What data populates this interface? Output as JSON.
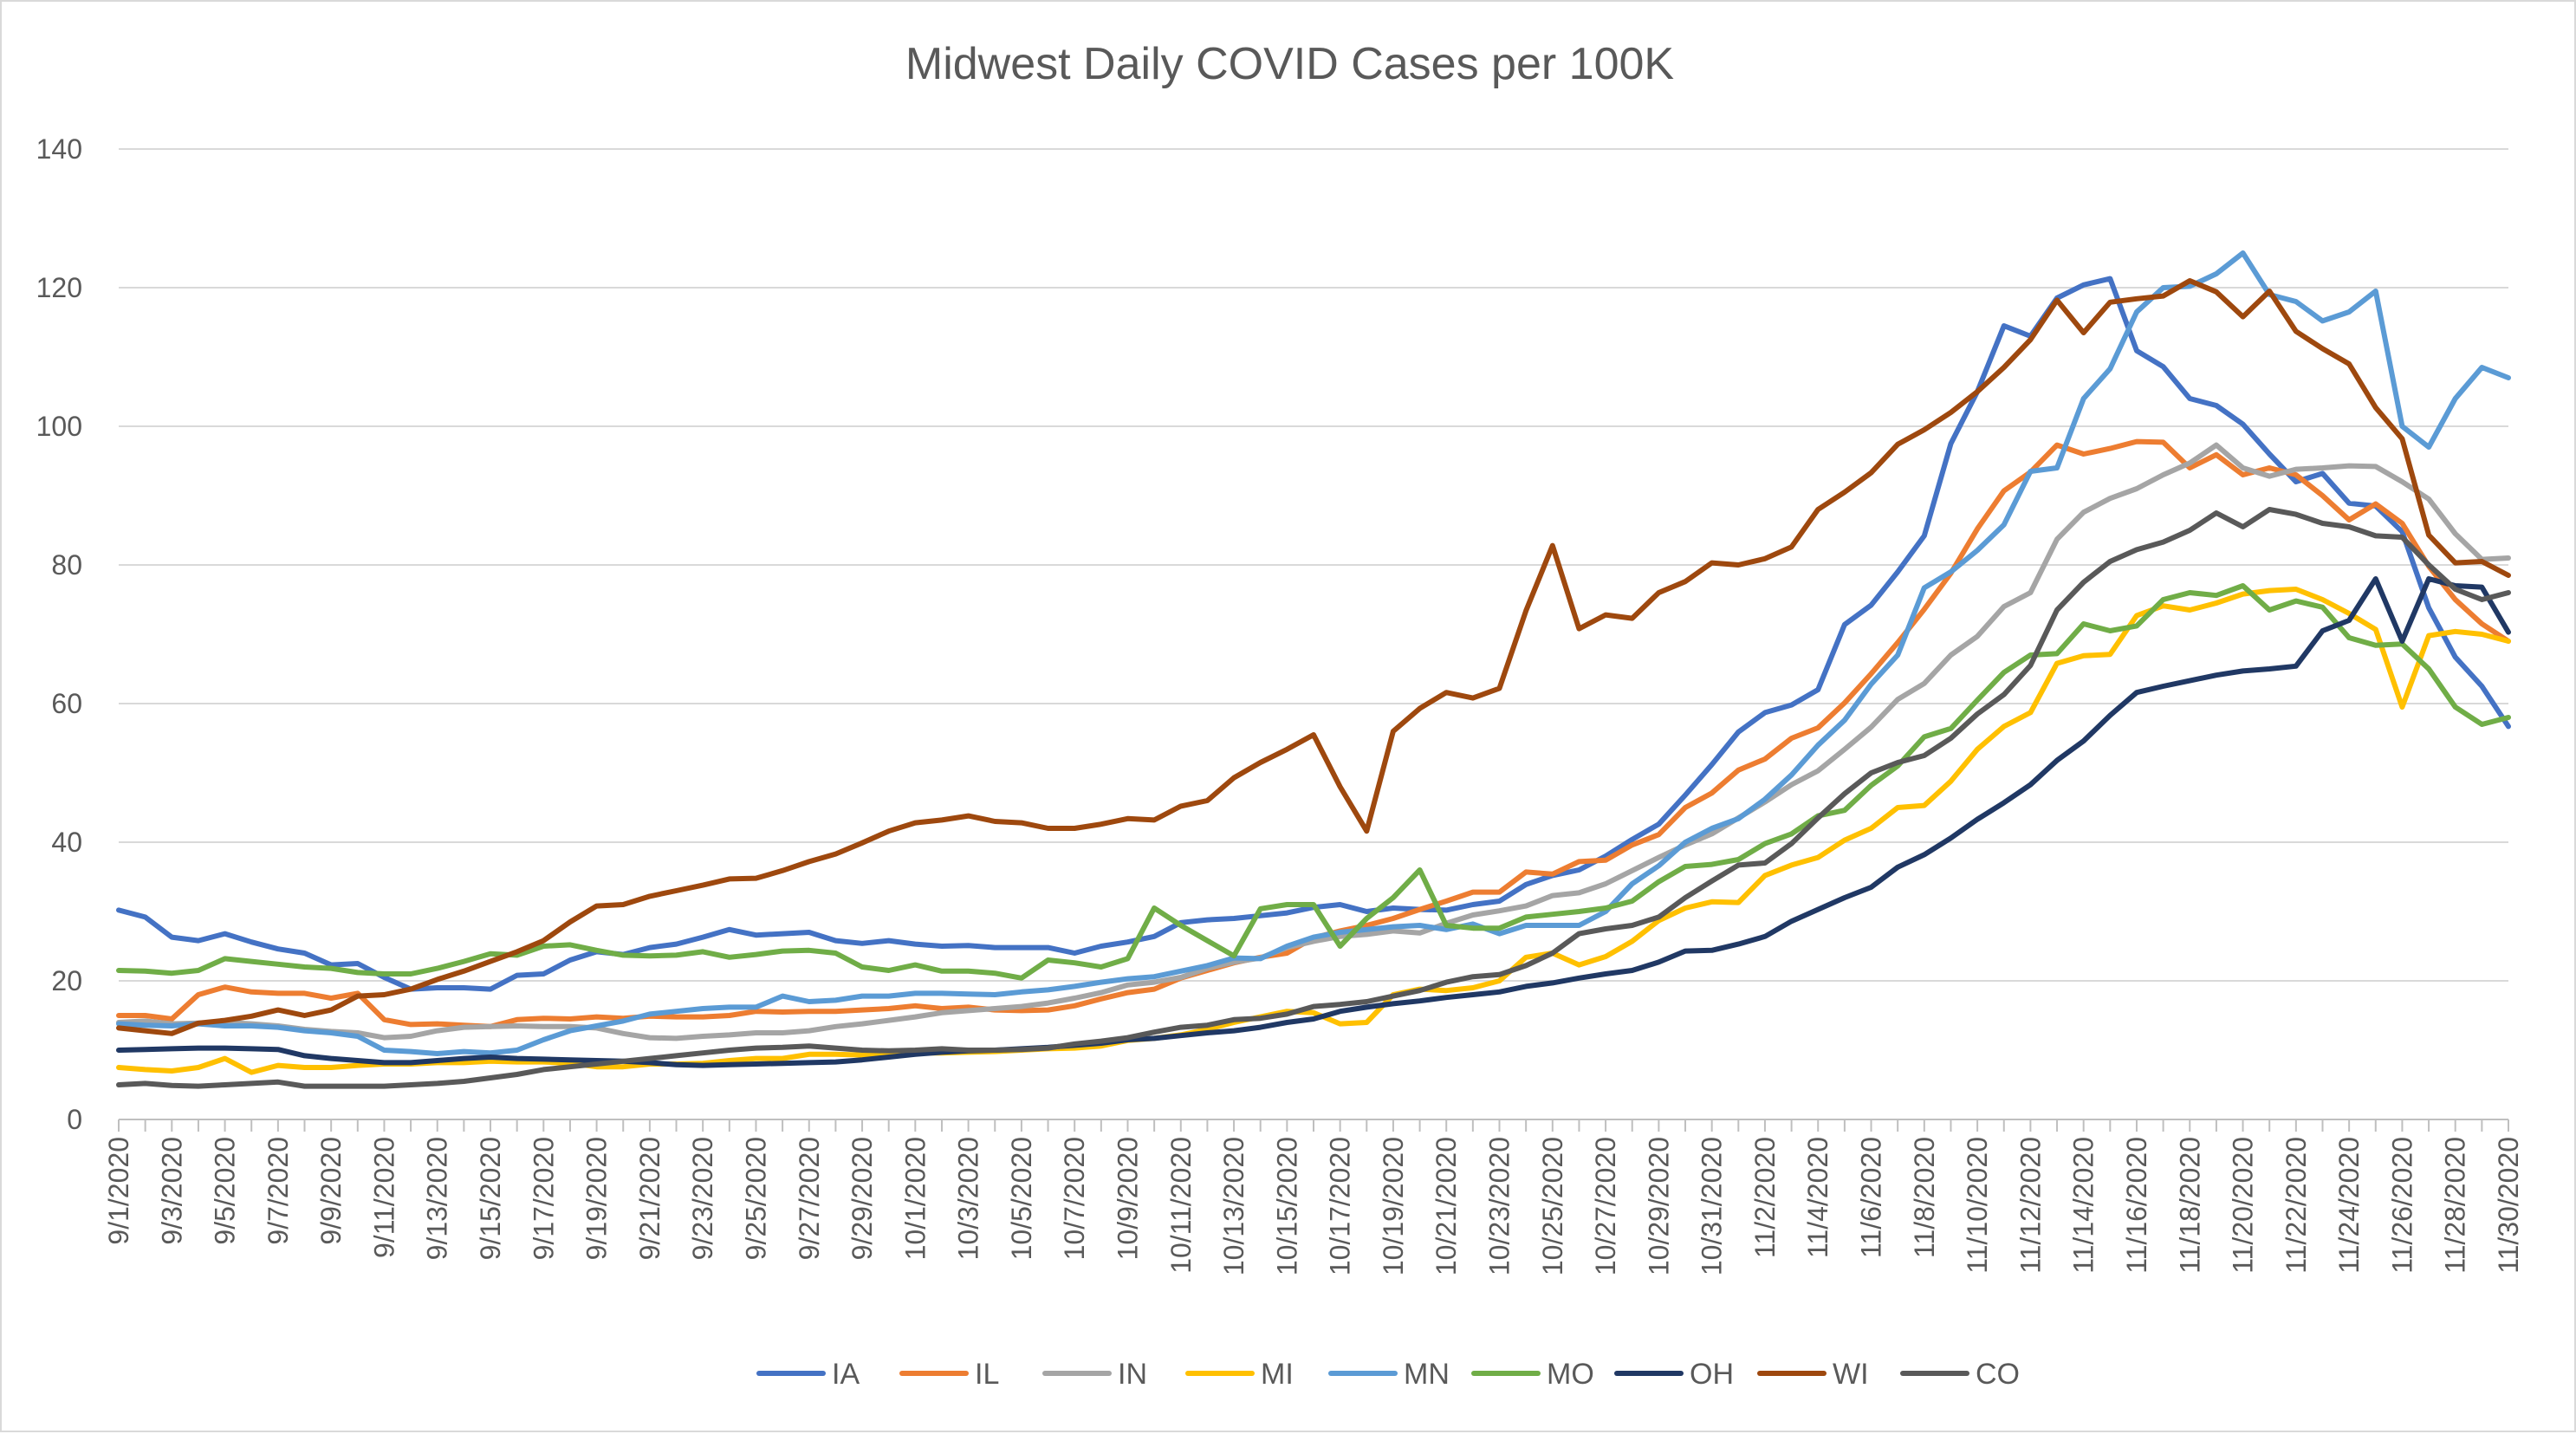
{
  "chart_data": {
    "type": "line",
    "title": "Midwest Daily COVID Cases per 100K",
    "xlabel": "",
    "ylabel": "",
    "ylim": [
      0,
      140
    ],
    "yticks": [
      0,
      20,
      40,
      60,
      80,
      100,
      120,
      140
    ],
    "grid": true,
    "legend_position": "bottom",
    "x": [
      "9/1/2020",
      "9/2/2020",
      "9/3/2020",
      "9/4/2020",
      "9/5/2020",
      "9/6/2020",
      "9/7/2020",
      "9/8/2020",
      "9/9/2020",
      "9/10/2020",
      "9/11/2020",
      "9/12/2020",
      "9/13/2020",
      "9/14/2020",
      "9/15/2020",
      "9/16/2020",
      "9/17/2020",
      "9/18/2020",
      "9/19/2020",
      "9/20/2020",
      "9/21/2020",
      "9/22/2020",
      "9/23/2020",
      "9/24/2020",
      "9/25/2020",
      "9/26/2020",
      "9/27/2020",
      "9/28/2020",
      "9/29/2020",
      "9/30/2020",
      "10/1/2020",
      "10/2/2020",
      "10/3/2020",
      "10/4/2020",
      "10/5/2020",
      "10/6/2020",
      "10/7/2020",
      "10/8/2020",
      "10/9/2020",
      "10/10/2020",
      "10/11/2020",
      "10/12/2020",
      "10/13/2020",
      "10/14/2020",
      "10/15/2020",
      "10/16/2020",
      "10/17/2020",
      "10/18/2020",
      "10/19/2020",
      "10/20/2020",
      "10/21/2020",
      "10/22/2020",
      "10/23/2020",
      "10/24/2020",
      "10/25/2020",
      "10/26/2020",
      "10/27/2020",
      "10/28/2020",
      "10/29/2020",
      "10/30/2020",
      "10/31/2020",
      "11/1/2020",
      "11/2/2020",
      "11/3/2020",
      "11/4/2020",
      "11/5/2020",
      "11/6/2020",
      "11/7/2020",
      "11/8/2020",
      "11/9/2020",
      "11/10/2020",
      "11/11/2020",
      "11/12/2020",
      "11/13/2020",
      "11/14/2020",
      "11/15/2020",
      "11/16/2020",
      "11/17/2020",
      "11/18/2020",
      "11/19/2020",
      "11/20/2020",
      "11/21/2020",
      "11/22/2020",
      "11/23/2020",
      "11/24/2020",
      "11/25/2020",
      "11/26/2020",
      "11/27/2020",
      "11/28/2020",
      "11/29/2020",
      "11/30/2020"
    ],
    "x_tick_labels": [
      "9/1/2020",
      "9/3/2020",
      "9/5/2020",
      "9/7/2020",
      "9/9/2020",
      "9/11/2020",
      "9/13/2020",
      "9/15/2020",
      "9/17/2020",
      "9/19/2020",
      "9/21/2020",
      "9/23/2020",
      "9/25/2020",
      "9/27/2020",
      "9/29/2020",
      "10/1/2020",
      "10/3/2020",
      "10/5/2020",
      "10/7/2020",
      "10/9/2020",
      "10/11/2020",
      "10/13/2020",
      "10/15/2020",
      "10/17/2020",
      "10/19/2020",
      "10/21/2020",
      "10/23/2020",
      "10/25/2020",
      "10/27/2020",
      "10/29/2020",
      "10/31/2020",
      "11/2/2020",
      "11/4/2020",
      "11/6/2020",
      "11/8/2020",
      "11/10/2020",
      "11/12/2020",
      "11/14/2020",
      "11/16/2020",
      "11/18/2020",
      "11/20/2020",
      "11/22/2020",
      "11/24/2020",
      "11/26/2020",
      "11/28/2020",
      "11/30/2020"
    ],
    "series": [
      {
        "name": "IA",
        "color": "#4472C4",
        "values": [
          30.2,
          29.2,
          26.3,
          25.8,
          26.8,
          25.6,
          24.6,
          24.0,
          22.3,
          22.5,
          20.5,
          18.8,
          19.0,
          19.0,
          18.8,
          20.8,
          21.0,
          23.0,
          24.2,
          23.8,
          24.8,
          25.3,
          26.3,
          27.4,
          26.6,
          26.8,
          27.0,
          25.8,
          25.4,
          25.8,
          25.3,
          25.0,
          25.1,
          24.8,
          24.8,
          24.8,
          24.0,
          25.0,
          25.6,
          26.4,
          28.4,
          28.8,
          29.0,
          29.4,
          29.8,
          30.6,
          31.0,
          30.0,
          30.5,
          30.3,
          30.2,
          31.0,
          31.5,
          33.9,
          35.2,
          36.0,
          38.0,
          40.4,
          42.6,
          46.8,
          51.2,
          55.9,
          58.7,
          59.8,
          62.0,
          71.4,
          74.2,
          79.0,
          84.2,
          97.5,
          105.0,
          114.5,
          113.0,
          118.5,
          120.4,
          121.3,
          110.9,
          108.6,
          104.0,
          103.0,
          100.3,
          96.0,
          92.0,
          93.2,
          88.9,
          88.5,
          84.8,
          73.8,
          66.7,
          62.5,
          56.7
        ]
      },
      {
        "name": "IL",
        "color": "#ED7D31",
        "values": [
          15.0,
          15.0,
          14.5,
          18.0,
          19.1,
          18.4,
          18.2,
          18.2,
          17.5,
          18.2,
          14.4,
          13.7,
          13.8,
          13.6,
          13.4,
          14.4,
          14.6,
          14.5,
          14.8,
          14.6,
          14.9,
          14.8,
          14.8,
          15.0,
          15.6,
          15.5,
          15.6,
          15.6,
          15.8,
          16.0,
          16.4,
          16.0,
          16.2,
          15.8,
          15.7,
          15.8,
          16.4,
          17.4,
          18.3,
          18.8,
          20.4,
          21.5,
          22.6,
          23.4,
          24.0,
          26.2,
          27.2,
          28.0,
          29.0,
          30.3,
          31.5,
          32.8,
          32.8,
          35.7,
          35.4,
          37.2,
          37.4,
          39.6,
          41.1,
          45.0,
          47.1,
          50.4,
          52.0,
          55.0,
          56.5,
          60.1,
          64.3,
          68.8,
          73.6,
          78.8,
          85.2,
          90.7,
          93.4,
          97.3,
          96.0,
          96.8,
          97.8,
          97.7,
          94.0,
          95.9,
          93.0,
          94.0,
          93.0,
          90.0,
          86.5,
          88.8,
          86.0,
          79.8,
          75.0,
          71.5,
          69.0
        ]
      },
      {
        "name": "IN",
        "color": "#A5A5A5",
        "values": [
          14.0,
          14.2,
          13.8,
          13.9,
          14.0,
          13.8,
          13.5,
          13.0,
          12.7,
          12.5,
          11.8,
          12.0,
          12.8,
          13.3,
          13.4,
          13.5,
          13.4,
          13.4,
          13.2,
          12.4,
          11.8,
          11.7,
          12.0,
          12.2,
          12.5,
          12.5,
          12.8,
          13.4,
          13.8,
          14.3,
          14.8,
          15.4,
          15.7,
          16.0,
          16.3,
          16.8,
          17.5,
          18.3,
          19.4,
          19.8,
          20.5,
          21.8,
          22.7,
          23.3,
          24.8,
          25.7,
          26.4,
          26.7,
          27.2,
          26.9,
          28.3,
          29.5,
          30.1,
          30.8,
          32.3,
          32.7,
          34.0,
          35.9,
          37.8,
          39.6,
          41.2,
          43.5,
          45.8,
          48.3,
          50.3,
          53.4,
          56.6,
          60.6,
          62.9,
          67.0,
          69.7,
          74.0,
          76.0,
          83.7,
          87.6,
          89.6,
          91.0,
          93.0,
          94.7,
          97.3,
          94.0,
          92.8,
          93.8,
          94.0,
          94.3,
          94.2,
          92.0,
          89.5,
          84.5,
          80.8,
          81.0
        ]
      },
      {
        "name": "MI",
        "color": "#FFC000",
        "values": [
          7.5,
          7.2,
          7.0,
          7.5,
          8.8,
          6.8,
          7.8,
          7.5,
          7.5,
          7.8,
          8.0,
          8.0,
          8.2,
          8.2,
          8.4,
          8.3,
          8.3,
          8.1,
          7.6,
          7.6,
          8.0,
          8.0,
          8.1,
          8.5,
          8.8,
          8.8,
          9.4,
          9.4,
          9.3,
          9.3,
          9.6,
          9.6,
          9.7,
          9.8,
          10.0,
          10.2,
          10.3,
          10.6,
          11.4,
          11.7,
          12.2,
          13.0,
          14.0,
          14.8,
          15.6,
          15.4,
          13.8,
          14.0,
          18.0,
          18.8,
          18.6,
          19.0,
          20.0,
          23.4,
          24.0,
          22.3,
          23.5,
          25.7,
          28.7,
          30.5,
          31.4,
          31.3,
          35.2,
          36.7,
          37.8,
          40.3,
          42.0,
          45.0,
          45.3,
          48.8,
          53.4,
          56.7,
          58.7,
          65.8,
          66.9,
          67.1,
          72.7,
          74.1,
          73.5,
          74.5,
          75.8,
          76.3,
          76.5,
          75.0,
          73.0,
          70.7,
          59.5,
          69.8,
          70.4,
          70.0,
          69.0
        ]
      },
      {
        "name": "MN",
        "color": "#5B9BD5",
        "values": [
          13.8,
          13.6,
          13.5,
          13.8,
          13.5,
          13.5,
          13.3,
          12.8,
          12.5,
          12.0,
          10.0,
          9.8,
          9.5,
          9.8,
          9.6,
          10.0,
          11.5,
          12.8,
          13.5,
          14.2,
          15.2,
          15.6,
          16.0,
          16.2,
          16.2,
          17.8,
          17.0,
          17.2,
          17.8,
          17.8,
          18.2,
          18.2,
          18.1,
          18.0,
          18.4,
          18.7,
          19.2,
          19.8,
          20.3,
          20.6,
          21.4,
          22.2,
          23.3,
          23.2,
          25.0,
          26.3,
          27.0,
          27.4,
          27.8,
          28.0,
          27.4,
          28.2,
          26.8,
          28.0,
          28.0,
          28.0,
          30.0,
          34.0,
          36.6,
          40.0,
          42.0,
          43.4,
          46.2,
          49.7,
          54.0,
          57.6,
          62.8,
          67.0,
          76.7,
          79.0,
          82.1,
          85.8,
          93.5,
          94.0,
          104.0,
          108.3,
          116.5,
          120.0,
          120.2,
          122.0,
          125.0,
          119.0,
          118.0,
          115.2,
          116.5,
          119.5,
          100.0,
          97.0,
          104.0,
          108.5,
          107.0
        ]
      },
      {
        "name": "MO",
        "color": "#70AD47",
        "values": [
          21.5,
          21.4,
          21.1,
          21.5,
          23.2,
          22.8,
          22.4,
          22.0,
          21.8,
          21.2,
          21.0,
          21.0,
          21.8,
          22.8,
          23.9,
          23.7,
          25.0,
          25.2,
          24.4,
          23.7,
          23.6,
          23.7,
          24.2,
          23.4,
          23.8,
          24.3,
          24.4,
          24.0,
          22.0,
          21.5,
          22.3,
          21.4,
          21.4,
          21.1,
          20.4,
          23.0,
          22.6,
          22.0,
          23.2,
          30.5,
          28.0,
          25.8,
          23.6,
          30.4,
          31.0,
          31.0,
          25.0,
          29.0,
          32.0,
          36.0,
          28.0,
          27.6,
          27.6,
          29.2,
          29.6,
          30.0,
          30.5,
          31.5,
          34.3,
          36.5,
          36.8,
          37.5,
          39.8,
          41.2,
          43.8,
          44.6,
          48.2,
          51.0,
          55.2,
          56.4,
          60.5,
          64.5,
          67.0,
          67.2,
          71.5,
          70.5,
          71.2,
          75.0,
          76.0,
          75.6,
          77.0,
          73.5,
          74.8,
          73.9,
          69.5,
          68.4,
          68.6,
          65.0,
          59.5,
          57.0,
          58.0
        ]
      },
      {
        "name": "OH",
        "color": "#203864",
        "values": [
          10.0,
          10.1,
          10.2,
          10.3,
          10.3,
          10.2,
          10.1,
          9.2,
          8.8,
          8.5,
          8.2,
          8.2,
          8.5,
          8.8,
          9.0,
          8.8,
          8.7,
          8.6,
          8.5,
          8.4,
          8.2,
          7.9,
          7.8,
          7.9,
          8.0,
          8.1,
          8.2,
          8.3,
          8.6,
          9.0,
          9.4,
          9.7,
          9.9,
          10.0,
          10.2,
          10.4,
          10.7,
          11.0,
          11.5,
          11.7,
          12.1,
          12.5,
          12.8,
          13.3,
          14.0,
          14.5,
          15.6,
          16.2,
          16.7,
          17.1,
          17.6,
          18.0,
          18.4,
          19.2,
          19.7,
          20.4,
          21.0,
          21.5,
          22.7,
          24.3,
          24.4,
          25.3,
          26.4,
          28.6,
          30.3,
          32.0,
          33.5,
          36.4,
          38.2,
          40.6,
          43.3,
          45.7,
          48.3,
          51.8,
          54.6,
          58.3,
          61.6,
          62.5,
          63.3,
          64.1,
          64.7,
          65.0,
          65.4,
          70.5,
          72.0,
          78.0,
          69.0,
          78.0,
          77.0,
          76.8,
          70.3
        ]
      },
      {
        "name": "WI",
        "color": "#9E480E",
        "values": [
          13.2,
          12.8,
          12.4,
          13.9,
          14.3,
          14.9,
          15.8,
          15.0,
          15.8,
          17.8,
          18.0,
          18.8,
          20.2,
          21.4,
          22.8,
          24.2,
          25.8,
          28.5,
          30.8,
          31.0,
          32.2,
          33.0,
          33.8,
          34.7,
          34.8,
          35.9,
          37.2,
          38.3,
          39.9,
          41.6,
          42.8,
          43.2,
          43.8,
          43.0,
          42.8,
          42.0,
          42.0,
          42.6,
          43.4,
          43.2,
          45.2,
          46.0,
          49.3,
          51.5,
          53.4,
          55.5,
          48.0,
          41.6,
          56.0,
          59.3,
          61.6,
          60.8,
          62.2,
          73.4,
          82.8,
          70.8,
          72.8,
          72.3,
          76.0,
          77.6,
          80.3,
          80.0,
          80.9,
          82.6,
          88.0,
          90.5,
          93.3,
          97.4,
          99.5,
          102.0,
          105.0,
          108.5,
          112.5,
          118.2,
          113.5,
          117.9,
          118.4,
          118.8,
          121.0,
          119.4,
          115.8,
          119.5,
          113.7,
          111.2,
          109.0,
          102.7,
          98.2,
          84.3,
          80.3,
          80.5,
          78.5
        ]
      },
      {
        "name": "CO",
        "color": "#595959",
        "values": [
          5.0,
          5.2,
          4.9,
          4.8,
          5.0,
          5.2,
          5.4,
          4.8,
          4.8,
          4.8,
          4.8,
          5.0,
          5.2,
          5.5,
          6.0,
          6.5,
          7.2,
          7.6,
          8.0,
          8.4,
          8.8,
          9.2,
          9.6,
          10.0,
          10.3,
          10.4,
          10.6,
          10.3,
          10.0,
          9.9,
          10.0,
          10.2,
          10.0,
          10.0,
          10.1,
          10.3,
          10.9,
          11.3,
          11.8,
          12.6,
          13.3,
          13.6,
          14.4,
          14.6,
          15.2,
          16.3,
          16.6,
          17.0,
          17.8,
          18.6,
          19.8,
          20.6,
          20.9,
          22.2,
          24.0,
          26.8,
          27.5,
          28.0,
          29.2,
          32.0,
          34.4,
          36.7,
          37.0,
          39.8,
          43.5,
          47.0,
          50.0,
          51.5,
          52.5,
          55.0,
          58.5,
          61.3,
          65.5,
          73.5,
          77.5,
          80.5,
          82.2,
          83.3,
          85.0,
          87.5,
          85.5,
          88.0,
          87.3,
          86.0,
          85.5,
          84.2,
          84.0,
          80.0,
          76.5,
          75.0,
          76.0
        ]
      }
    ]
  }
}
